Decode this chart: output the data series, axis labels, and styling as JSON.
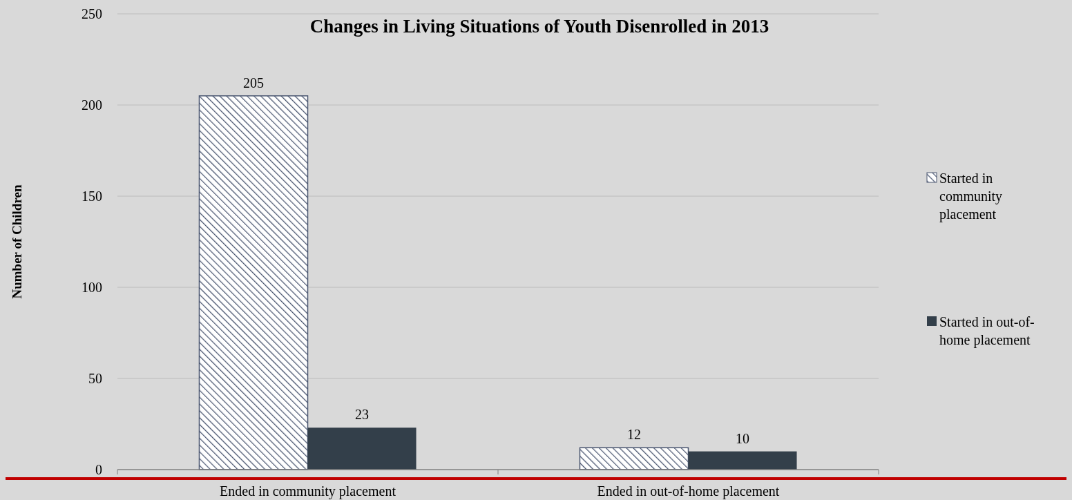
{
  "chart_data": {
    "type": "bar",
    "title": "Changes in Living Situations of Youth Disenrolled in 2013",
    "ylabel": "Number of Children",
    "categories": [
      "Ended in community placement",
      "Ended in out-of-home placement"
    ],
    "series": [
      {
        "name": "Started in community placement",
        "color": "#4a5670",
        "values": [
          205,
          12
        ]
      },
      {
        "name": "Started in out-of-home placement",
        "color": "#333f4a",
        "values": [
          23,
          10
        ]
      }
    ],
    "ylim": [
      0,
      250
    ],
    "yticks": [
      0,
      50,
      100,
      150,
      200,
      250
    ],
    "grid": "y",
    "legend": "right",
    "data_labels": true
  }
}
